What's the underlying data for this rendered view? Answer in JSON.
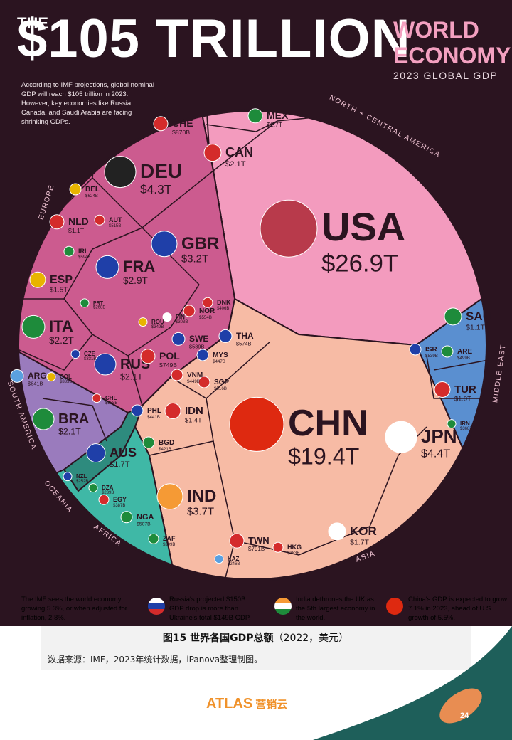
{
  "header": {
    "the": "THE",
    "title": "$105 TRILLION",
    "title_right_line1": "WORLD",
    "title_right_line2": "ECONOMY",
    "subtitle": "2023 GLOBAL GDP"
  },
  "intro": "According to IMF projections, global nominal GDP will reach $105 trillion in 2023. However, key economies like Russia, Canada, and Saudi Arabia are facing shrinking GDPs.",
  "regions": [
    "NORTH + CENTRAL AMERICA",
    "EUROPE",
    "MIDDLE EAST",
    "SOUTH AMERICA",
    "OCEANIA",
    "AFRICA",
    "ASIA"
  ],
  "colors": {
    "background": "#2b1420",
    "north_america": "#f39bbe",
    "europe": "#cc5b8f",
    "asia": "#f7bba5",
    "middle_east": "#5a8fd0",
    "south_america": "#9a7bbd",
    "oceania": "#2e8b7e",
    "africa": "#3fb8a6"
  },
  "chart_data": {
    "type": "voronoi-treemap",
    "title": "$105 TRILLION WORLD ECONOMY",
    "subtitle": "2023 GLOBAL GDP",
    "countries": [
      {
        "code": "USA",
        "value": "$26.9T",
        "region": "North + Central America"
      },
      {
        "code": "CAN",
        "value": "$2.1T",
        "region": "North + Central America"
      },
      {
        "code": "MEX",
        "value": "$1.7T",
        "region": "North + Central America"
      },
      {
        "code": "CHN",
        "value": "$19.4T",
        "region": "Asia"
      },
      {
        "code": "JPN",
        "value": "$4.4T",
        "region": "Asia"
      },
      {
        "code": "IND",
        "value": "$3.7T",
        "region": "Asia"
      },
      {
        "code": "KOR",
        "value": "$1.7T",
        "region": "Asia"
      },
      {
        "code": "IDN",
        "value": "$1.4T",
        "region": "Asia"
      },
      {
        "code": "TWN",
        "value": "$791B",
        "region": "Asia"
      },
      {
        "code": "THA",
        "value": "$574B",
        "region": "Asia"
      },
      {
        "code": "SGP",
        "value": "$516B",
        "region": "Asia"
      },
      {
        "code": "VNM",
        "value": "$449B",
        "region": "Asia"
      },
      {
        "code": "MYS",
        "value": "$447B",
        "region": "Asia"
      },
      {
        "code": "PHL",
        "value": "$441B",
        "region": "Asia"
      },
      {
        "code": "BGD",
        "value": "$421B",
        "region": "Asia"
      },
      {
        "code": "HKG",
        "value": "$383B",
        "region": "Asia"
      },
      {
        "code": "KAZ",
        "value": "$246B",
        "region": "Asia"
      },
      {
        "code": "DEU",
        "value": "$4.3T",
        "region": "Europe"
      },
      {
        "code": "GBR",
        "value": "$3.2T",
        "region": "Europe"
      },
      {
        "code": "FRA",
        "value": "$2.9T",
        "region": "Europe"
      },
      {
        "code": "ITA",
        "value": "$2.2T",
        "region": "Europe"
      },
      {
        "code": "RUS",
        "value": "$2.1T",
        "region": "Europe"
      },
      {
        "code": "ESP",
        "value": "$1.5T",
        "region": "Europe"
      },
      {
        "code": "NLD",
        "value": "$1.1T",
        "region": "Europe"
      },
      {
        "code": "CHE",
        "value": "$870B",
        "region": "Europe"
      },
      {
        "code": "POL",
        "value": "$749B",
        "region": "Europe"
      },
      {
        "code": "BEL",
        "value": "$624B",
        "region": "Europe"
      },
      {
        "code": "SWE",
        "value": "$589B",
        "region": "Europe"
      },
      {
        "code": "IRL",
        "value": "$594B",
        "region": "Europe"
      },
      {
        "code": "AUT",
        "value": "$515B",
        "region": "Europe"
      },
      {
        "code": "NOR",
        "value": "$554B",
        "region": "Europe"
      },
      {
        "code": "DNK",
        "value": "$406B",
        "region": "Europe"
      },
      {
        "code": "ROU",
        "value": "$349B",
        "region": "Europe"
      },
      {
        "code": "CZE",
        "value": "$331B",
        "region": "Europe"
      },
      {
        "code": "FIN",
        "value": "$303B",
        "region": "Europe"
      },
      {
        "code": "PRT",
        "value": "$268B",
        "region": "Europe"
      },
      {
        "code": "SAU",
        "value": "$1.1T",
        "region": "Middle East"
      },
      {
        "code": "TUR",
        "value": "$1.0T",
        "region": "Middle East"
      },
      {
        "code": "ISR",
        "value": "$539B",
        "region": "Middle East"
      },
      {
        "code": "ARE",
        "value": "$499B",
        "region": "Middle East"
      },
      {
        "code": "IRN",
        "value": "$368B",
        "region": "Middle East"
      },
      {
        "code": "BRA",
        "value": "$2.1T",
        "region": "South America"
      },
      {
        "code": "ARG",
        "value": "$641B",
        "region": "South America"
      },
      {
        "code": "COL",
        "value": "$335B",
        "region": "South America"
      },
      {
        "code": "CHL",
        "value": "$358B",
        "region": "South America"
      },
      {
        "code": "AUS",
        "value": "$1.7T",
        "region": "Oceania"
      },
      {
        "code": "NZL",
        "value": "$252B",
        "region": "Oceania"
      },
      {
        "code": "NGA",
        "value": "$507B",
        "region": "Africa"
      },
      {
        "code": "EGY",
        "value": "$387B",
        "region": "Africa"
      },
      {
        "code": "ZAF",
        "value": "$399B",
        "region": "Africa"
      },
      {
        "code": "DZA",
        "value": "$239B",
        "region": "Africa"
      }
    ]
  },
  "footnotes": [
    {
      "text": "The IMF sees the world economy growing 5.3%, or when adjusted for inflation, 2.8%.",
      "color": "#ffffff"
    },
    {
      "text": "Russia's projected $150B GDP drop is more than Ukraine's total $149B GDP.",
      "color": "#e48ab0"
    },
    {
      "text": "India dethrones the UK as the 5th largest economy in the world.",
      "color": "#f7bba5"
    },
    {
      "text": "China's GDP is expected to grow 7.1% in 2023, ahead of U.S. growth of 5.5%.",
      "color": "#f7bba5"
    }
  ],
  "caption": {
    "title": "图15 世界各国GDP总额",
    "title_suffix": "（2022，美元）",
    "source": "数据来源：IMF，2023年统计数据，iPanova整理制图。"
  },
  "brand": {
    "logo_main": "ATLAS",
    "logo_sub": "营销云"
  },
  "page_number": "24"
}
